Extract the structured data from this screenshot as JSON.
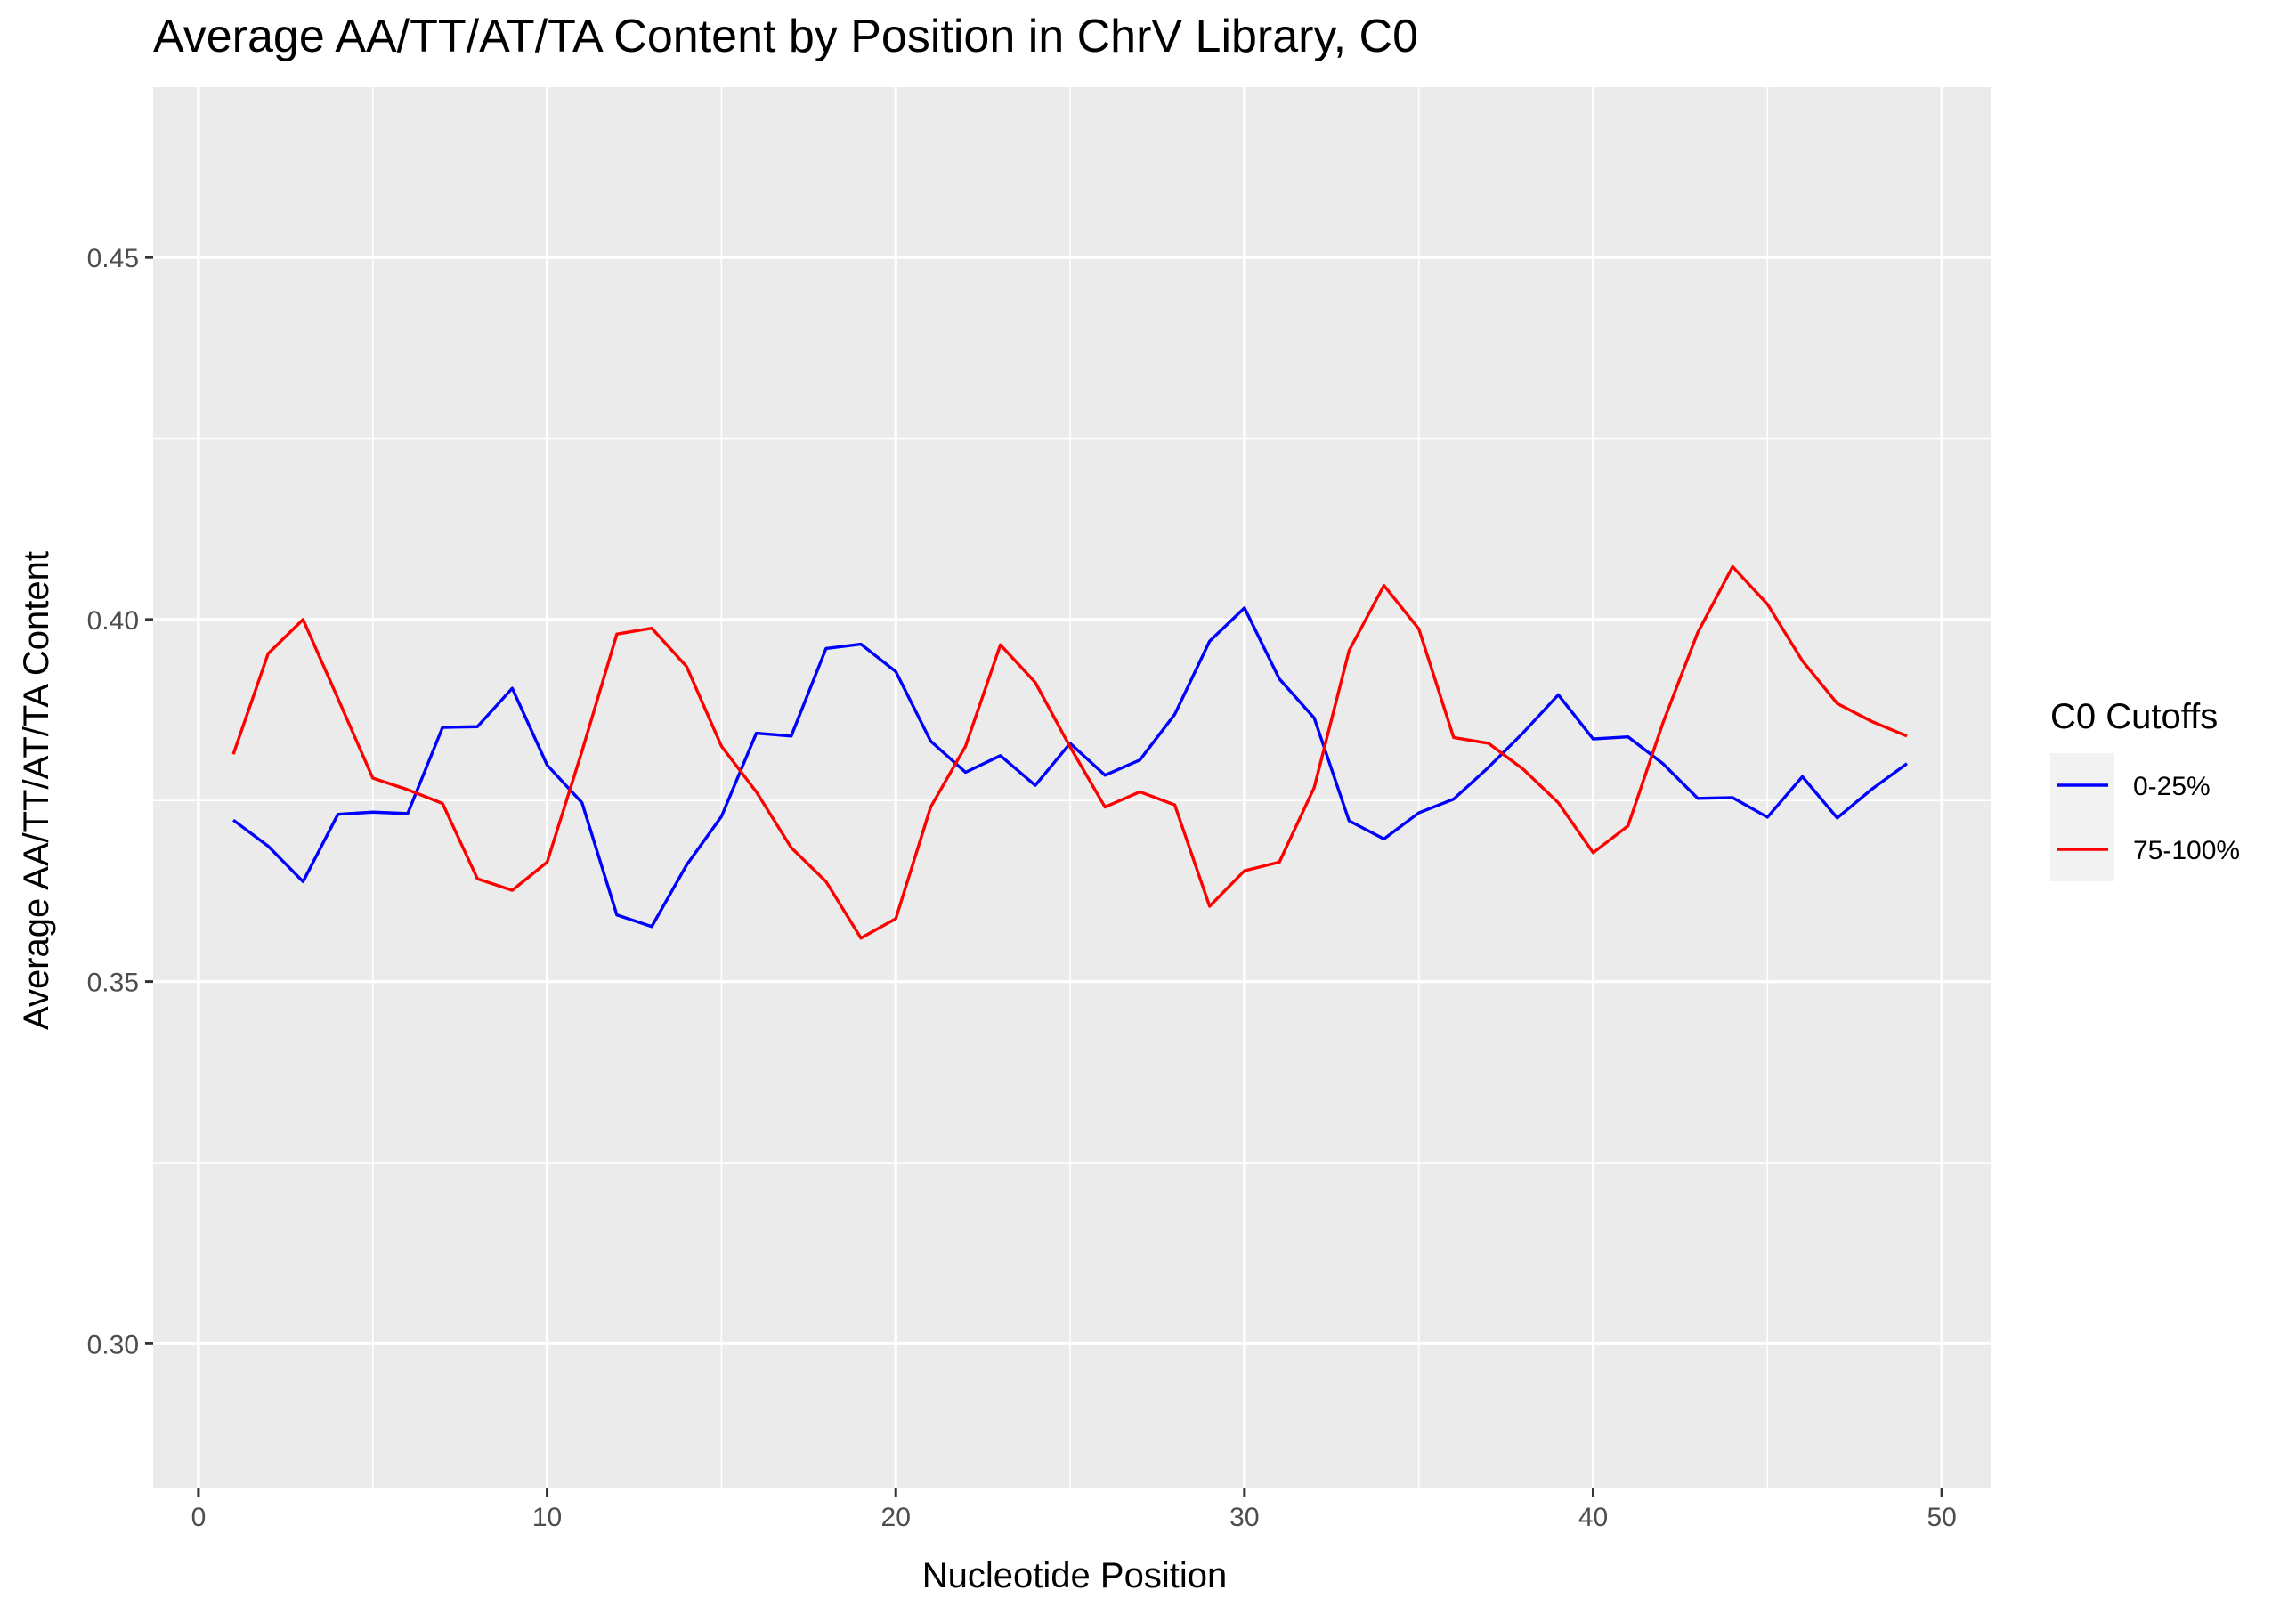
{
  "chart_data": {
    "type": "line",
    "title": "Average AA/TT/AT/TA Content by Position in ChrV Library, C0",
    "xlabel": "Nucleotide Position",
    "ylabel": "Average AA/TT/AT/TA Content",
    "xlim": [
      -1.3,
      51.4
    ],
    "ylim": [
      0.28,
      0.4735
    ],
    "x_ticks": [
      0,
      10,
      20,
      30,
      40,
      50
    ],
    "x_tick_labels": [
      "0",
      "10",
      "20",
      "30",
      "40",
      "50"
    ],
    "y_ticks": [
      0.3,
      0.35,
      0.4,
      0.45
    ],
    "y_tick_labels": [
      "0.30",
      "0.35",
      "0.40",
      "0.45"
    ],
    "grid": true,
    "legend": {
      "title": "C0 Cutoffs",
      "position": "right"
    },
    "x": [
      1,
      2,
      3,
      4,
      5,
      6,
      7,
      8,
      9,
      10,
      11,
      12,
      13,
      14,
      15,
      16,
      17,
      18,
      19,
      20,
      21,
      22,
      23,
      24,
      25,
      26,
      27,
      28,
      29,
      30,
      31,
      32,
      33,
      34,
      35,
      36,
      37,
      38,
      39,
      40,
      41,
      42,
      43,
      44,
      45,
      46,
      47,
      48,
      49
    ],
    "series": [
      {
        "name": "0-25%",
        "color": "#0000ff",
        "values": [
          0.3723,
          0.3687,
          0.3638,
          0.3731,
          0.3734,
          0.3732,
          0.3851,
          0.3852,
          0.3905,
          0.3799,
          0.3747,
          0.3592,
          0.3576,
          0.3661,
          0.3728,
          0.3843,
          0.3839,
          0.396,
          0.3966,
          0.3928,
          0.3832,
          0.3789,
          0.3812,
          0.3771,
          0.3829,
          0.3785,
          0.3806,
          0.3869,
          0.397,
          0.4016,
          0.3918,
          0.3864,
          0.3722,
          0.3697,
          0.3733,
          0.3752,
          0.3796,
          0.3844,
          0.3896,
          0.3835,
          0.3838,
          0.3801,
          0.3753,
          0.3754,
          0.3727,
          0.3783,
          0.3726,
          0.3766,
          0.3801
        ]
      },
      {
        "name": "75-100%",
        "color": "#ff0000",
        "values": [
          0.3814,
          0.3953,
          0.4,
          0.3891,
          0.3781,
          0.3765,
          0.3746,
          0.3642,
          0.3626,
          0.3665,
          0.3818,
          0.398,
          0.3988,
          0.3935,
          0.3825,
          0.3762,
          0.3685,
          0.3638,
          0.356,
          0.3587,
          0.3741,
          0.3825,
          0.3965,
          0.3913,
          0.3824,
          0.3741,
          0.3762,
          0.3744,
          0.3604,
          0.3653,
          0.3665,
          0.3768,
          0.3957,
          0.4047,
          0.3987,
          0.3837,
          0.3829,
          0.3793,
          0.3747,
          0.3678,
          0.3715,
          0.3857,
          0.3982,
          0.4073,
          0.4021,
          0.3943,
          0.3884,
          0.3859,
          0.3839
        ]
      }
    ]
  }
}
